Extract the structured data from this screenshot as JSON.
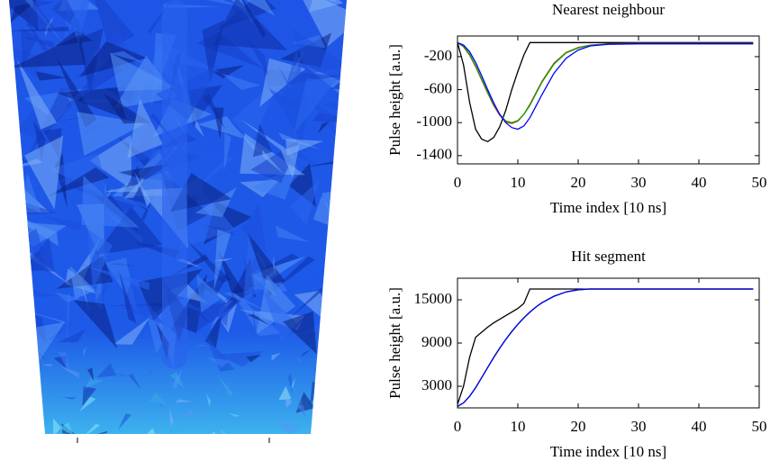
{
  "chart_data": [
    {
      "type": "line",
      "title": "Nearest neighbour",
      "x_label": "Time index [10 ns]",
      "y_label": "Pulse height [a.u.]",
      "x": [
        0,
        1,
        2,
        3,
        4,
        5,
        6,
        7,
        8,
        9,
        10,
        11,
        12,
        13,
        14,
        16,
        18,
        20,
        22,
        25,
        30,
        35,
        40,
        45,
        49
      ],
      "series": [
        {
          "color": "#000000",
          "values": [
            -30,
            -300,
            -750,
            -1080,
            -1200,
            -1230,
            -1180,
            -1050,
            -850,
            -600,
            -380,
            -180,
            -30,
            -30,
            -30,
            -30,
            -30,
            -30,
            -30,
            -30,
            -30,
            -30,
            -30,
            -30,
            -30
          ]
        },
        {
          "color": "#ff0000",
          "values": [
            -30,
            -80,
            -180,
            -320,
            -480,
            -640,
            -790,
            -910,
            -990,
            -1010,
            -980,
            -900,
            -780,
            -640,
            -500,
            -280,
            -150,
            -90,
            -60,
            -45,
            -40,
            -40,
            -40,
            -40,
            -40
          ]
        },
        {
          "color": "#00b000",
          "values": [
            -30,
            -75,
            -170,
            -310,
            -470,
            -630,
            -780,
            -900,
            -980,
            -1000,
            -975,
            -900,
            -790,
            -650,
            -510,
            -290,
            -155,
            -95,
            -62,
            -47,
            -42,
            -42,
            -42,
            -42,
            -42
          ]
        },
        {
          "color": "#0000ff",
          "values": [
            -30,
            -60,
            -140,
            -270,
            -430,
            -600,
            -760,
            -900,
            -1000,
            -1060,
            -1080,
            -1040,
            -940,
            -800,
            -660,
            -400,
            -220,
            -120,
            -70,
            -50,
            -45,
            -45,
            -45,
            -45,
            -45
          ]
        }
      ],
      "xlim": [
        0,
        50
      ],
      "xticks": [
        0,
        10,
        20,
        30,
        40,
        50
      ],
      "ylim": [
        -1500,
        50
      ],
      "yticks": [
        -200,
        -600,
        -1000,
        -1400
      ]
    },
    {
      "type": "line",
      "title": "Hit segment",
      "x_label": "Time index [10 ns]",
      "y_label": "Pulse height [a.u.]",
      "x": [
        0,
        1,
        2,
        3,
        4,
        5,
        6,
        7,
        8,
        9,
        10,
        11,
        12,
        13,
        14,
        16,
        18,
        20,
        22,
        25,
        30,
        35,
        40,
        45,
        49
      ],
      "series": [
        {
          "color": "#000000",
          "values": [
            500,
            3000,
            7000,
            9800,
            10500,
            11200,
            11800,
            12300,
            12800,
            13300,
            13800,
            14500,
            16500,
            16500,
            16500,
            16500,
            16500,
            16500,
            16500,
            16500,
            16500,
            16500,
            16500,
            16500,
            16500
          ]
        },
        {
          "color": "#ff0000",
          "values": [
            200,
            700,
            1600,
            2800,
            4200,
            5600,
            7000,
            8300,
            9500,
            10600,
            11600,
            12500,
            13300,
            14000,
            14600,
            15500,
            16100,
            16400,
            16500,
            16500,
            16500,
            16500,
            16500,
            16500,
            16500
          ]
        },
        {
          "color": "#00b000",
          "values": [
            200,
            700,
            1600,
            2800,
            4200,
            5600,
            7000,
            8300,
            9500,
            10600,
            11600,
            12500,
            13300,
            14000,
            14600,
            15500,
            16100,
            16400,
            16500,
            16500,
            16500,
            16500,
            16500,
            16500,
            16500
          ]
        },
        {
          "color": "#0000ff",
          "values": [
            200,
            700,
            1600,
            2800,
            4200,
            5600,
            7000,
            8300,
            9500,
            10600,
            11600,
            12500,
            13300,
            14000,
            14600,
            15500,
            16100,
            16400,
            16500,
            16500,
            16500,
            16500,
            16500,
            16500,
            16500
          ]
        }
      ],
      "xlim": [
        0,
        50
      ],
      "xticks": [
        0,
        10,
        20,
        30,
        40,
        50
      ],
      "ylim": [
        0,
        18000
      ],
      "yticks": [
        3000,
        9000,
        15000
      ]
    }
  ]
}
